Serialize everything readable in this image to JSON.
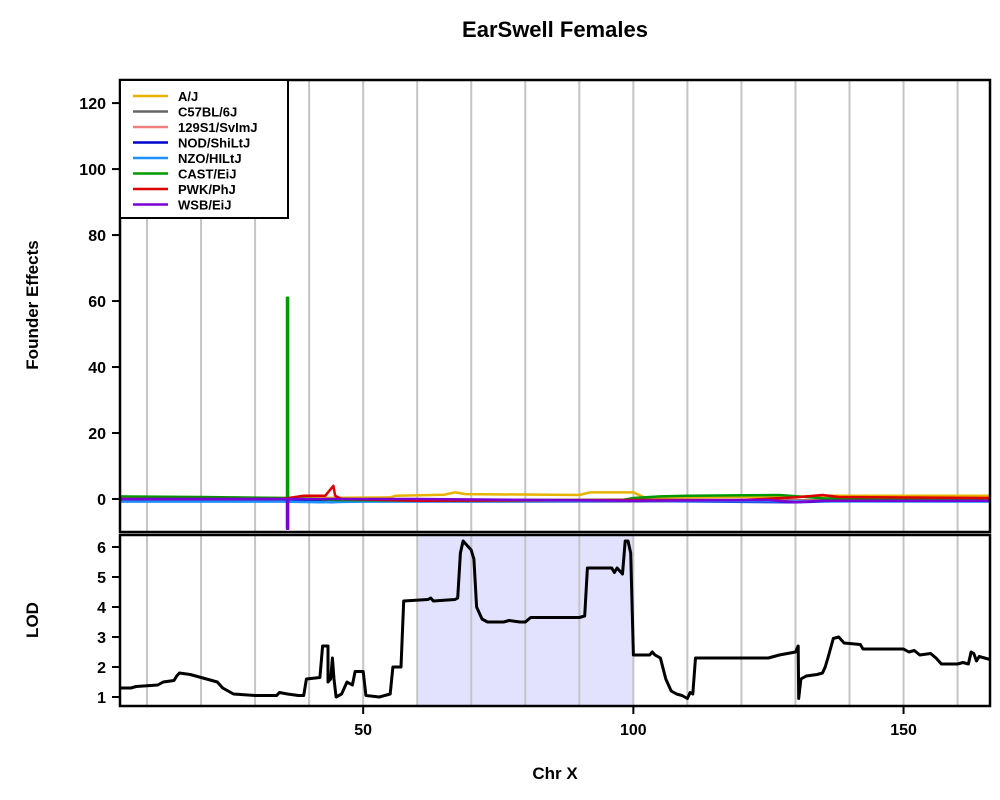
{
  "chart_data": {
    "type": "line",
    "title": "EarSwell Females",
    "xlabel": "Chr X",
    "xlim": [
      5,
      166
    ],
    "xticks": [
      50,
      100,
      150
    ],
    "grid_x": [
      10,
      20,
      30,
      40,
      50,
      60,
      70,
      80,
      90,
      100,
      110,
      120,
      130,
      140,
      150,
      160
    ],
    "top_panel": {
      "ylabel": "Founder Effects",
      "ylim": [
        -10,
        127
      ],
      "yticks": [
        0,
        20,
        40,
        60,
        80,
        100,
        120
      ],
      "legend_position": "top-left",
      "series": [
        {
          "name": "A/J",
          "color": "#E6B400",
          "points": [
            [
              5,
              0.3
            ],
            [
              40,
              0.3
            ],
            [
              55,
              0.5
            ],
            [
              56,
              1.0
            ],
            [
              65,
              1.3
            ],
            [
              67,
              2.0
            ],
            [
              69,
              1.5
            ],
            [
              90,
              1.2
            ],
            [
              92,
              2.0
            ],
            [
              100,
              2.0
            ],
            [
              102,
              0.5
            ],
            [
              110,
              0.6
            ],
            [
              130,
              0.7
            ],
            [
              135,
              1.0
            ],
            [
              166,
              1.0
            ]
          ]
        },
        {
          "name": "C57BL/6J",
          "color": "#666666",
          "points": [
            [
              5,
              -0.2
            ],
            [
              35,
              -0.2
            ],
            [
              45,
              -0.3
            ],
            [
              60,
              -0.3
            ],
            [
              100,
              -0.2
            ],
            [
              130,
              -0.4
            ],
            [
              166,
              -0.3
            ]
          ]
        },
        {
          "name": "129S1/SvImJ",
          "color": "#F08080",
          "points": [
            [
              5,
              -0.5
            ],
            [
              35,
              -0.5
            ],
            [
              50,
              -0.6
            ],
            [
              70,
              -0.8
            ],
            [
              100,
              -0.8
            ],
            [
              130,
              -0.5
            ],
            [
              166,
              -0.4
            ]
          ]
        },
        {
          "name": "NOD/ShiLtJ",
          "color": "#0000CC",
          "points": [
            [
              5,
              -0.3
            ],
            [
              35,
              -0.3
            ],
            [
              42,
              -0.5
            ],
            [
              44,
              -1.0
            ],
            [
              48,
              -0.5
            ],
            [
              60,
              -0.5
            ],
            [
              100,
              -0.6
            ],
            [
              130,
              -1.0
            ],
            [
              140,
              -0.5
            ],
            [
              166,
              -0.4
            ]
          ]
        },
        {
          "name": "NZO/HILtJ",
          "color": "#1E90FF",
          "points": [
            [
              5,
              -0.8
            ],
            [
              35,
              -0.8
            ],
            [
              42,
              -1.0
            ],
            [
              50,
              -0.8
            ],
            [
              100,
              -0.7
            ],
            [
              166,
              -0.8
            ]
          ]
        },
        {
          "name": "CAST/EiJ",
          "color": "#009900",
          "points": [
            [
              5,
              0.8
            ],
            [
              20,
              0.6
            ],
            [
              35.9,
              0.3
            ],
            [
              35.9,
              61
            ],
            [
              36.1,
              61
            ],
            [
              36.1,
              0.3
            ],
            [
              45,
              -0.3
            ],
            [
              60,
              -0.5
            ],
            [
              98,
              -0.3
            ],
            [
              100,
              0.3
            ],
            [
              105,
              0.8
            ],
            [
              110,
              1.0
            ],
            [
              127,
              1.2
            ],
            [
              135,
              0.2
            ],
            [
              166,
              -0.2
            ]
          ]
        },
        {
          "name": "PWK/PhJ",
          "color": "#DD0000",
          "points": [
            [
              5,
              0.0
            ],
            [
              35,
              0.0
            ],
            [
              39,
              1.0
            ],
            [
              43,
              1.0
            ],
            [
              44.5,
              4.0
            ],
            [
              44.8,
              1.0
            ],
            [
              46,
              0.0
            ],
            [
              60,
              -0.5
            ],
            [
              100,
              -0.3
            ],
            [
              120,
              -0.3
            ],
            [
              130,
              0.5
            ],
            [
              135,
              1.2
            ],
            [
              138,
              0.6
            ],
            [
              166,
              0.3
            ]
          ]
        },
        {
          "name": "WSB/EiJ",
          "color": "#7B00D4",
          "points": [
            [
              5,
              0.0
            ],
            [
              35,
              0.0
            ],
            [
              35.9,
              0.0
            ],
            [
              35.9,
              -9
            ],
            [
              36.1,
              -9
            ],
            [
              36.1,
              0.0
            ],
            [
              50,
              0.0
            ],
            [
              60,
              0.0
            ],
            [
              100,
              -0.5
            ],
            [
              125,
              -0.3
            ],
            [
              130,
              -1.0
            ],
            [
              135,
              -0.5
            ],
            [
              166,
              -0.5
            ]
          ]
        }
      ]
    },
    "bottom_panel": {
      "ylabel": "LOD",
      "ylim": [
        0.7,
        6.4
      ],
      "yticks": [
        1,
        2,
        3,
        4,
        5,
        6
      ],
      "highlight_interval": [
        60,
        100
      ],
      "highlight_color": "#E2E2FF",
      "series": [
        {
          "name": "LOD",
          "color": "#000000",
          "points": [
            [
              5,
              1.3
            ],
            [
              7,
              1.3
            ],
            [
              8,
              1.35
            ],
            [
              12,
              1.4
            ],
            [
              13,
              1.5
            ],
            [
              15,
              1.55
            ],
            [
              15.5,
              1.7
            ],
            [
              16,
              1.8
            ],
            [
              18,
              1.75
            ],
            [
              20,
              1.65
            ],
            [
              23,
              1.5
            ],
            [
              24,
              1.3
            ],
            [
              26,
              1.1
            ],
            [
              30,
              1.05
            ],
            [
              34,
              1.05
            ],
            [
              34.5,
              1.15
            ],
            [
              36,
              1.1
            ],
            [
              38,
              1.05
            ],
            [
              39,
              1.05
            ],
            [
              39.5,
              1.6
            ],
            [
              42,
              1.65
            ],
            [
              42.5,
              2.7
            ],
            [
              43.5,
              2.7
            ],
            [
              43.5,
              1.5
            ],
            [
              44,
              1.6
            ],
            [
              44.3,
              2.3
            ],
            [
              44.6,
              1.6
            ],
            [
              45,
              1.0
            ],
            [
              46,
              1.1
            ],
            [
              47,
              1.5
            ],
            [
              48,
              1.4
            ],
            [
              48.5,
              1.85
            ],
            [
              50,
              1.85
            ],
            [
              50.5,
              1.05
            ],
            [
              53,
              1.0
            ],
            [
              55,
              1.1
            ],
            [
              55.5,
              2.0
            ],
            [
              57,
              2.0
            ],
            [
              57.5,
              4.2
            ],
            [
              62,
              4.25
            ],
            [
              62.5,
              4.3
            ],
            [
              63,
              4.2
            ],
            [
              67,
              4.25
            ],
            [
              67.5,
              4.3
            ],
            [
              68,
              5.8
            ],
            [
              68.5,
              6.2
            ],
            [
              70,
              5.9
            ],
            [
              70.5,
              5.6
            ],
            [
              71,
              4.0
            ],
            [
              72,
              3.6
            ],
            [
              73,
              3.5
            ],
            [
              76,
              3.5
            ],
            [
              77,
              3.55
            ],
            [
              79,
              3.5
            ],
            [
              80,
              3.5
            ],
            [
              81,
              3.65
            ],
            [
              90,
              3.65
            ],
            [
              91,
              3.7
            ],
            [
              91.5,
              5.3
            ],
            [
              96,
              5.3
            ],
            [
              96.5,
              5.15
            ],
            [
              97,
              5.3
            ],
            [
              98,
              5.1
            ],
            [
              98.5,
              6.2
            ],
            [
              99,
              6.2
            ],
            [
              99.5,
              5.8
            ],
            [
              100,
              2.4
            ],
            [
              103,
              2.4
            ],
            [
              103.5,
              2.5
            ],
            [
              104,
              2.4
            ],
            [
              105,
              2.3
            ],
            [
              106,
              1.6
            ],
            [
              107,
              1.2
            ],
            [
              108,
              1.1
            ],
            [
              109,
              1.05
            ],
            [
              110,
              0.95
            ],
            [
              110.5,
              1.15
            ],
            [
              111,
              1.1
            ],
            [
              111.5,
              2.3
            ],
            [
              120,
              2.3
            ],
            [
              125,
              2.3
            ],
            [
              127,
              2.4
            ],
            [
              130,
              2.5
            ],
            [
              130.5,
              2.7
            ],
            [
              130.6,
              0.95
            ],
            [
              131,
              1.6
            ],
            [
              132,
              1.7
            ],
            [
              134,
              1.75
            ],
            [
              135,
              1.8
            ],
            [
              135.5,
              2.0
            ],
            [
              136,
              2.3
            ],
            [
              137,
              2.95
            ],
            [
              138,
              3.0
            ],
            [
              139,
              2.8
            ],
            [
              142,
              2.75
            ],
            [
              142.5,
              2.6
            ],
            [
              150,
              2.6
            ],
            [
              151,
              2.5
            ],
            [
              152,
              2.55
            ],
            [
              153,
              2.4
            ],
            [
              155,
              2.45
            ],
            [
              156,
              2.3
            ],
            [
              157,
              2.1
            ],
            [
              160,
              2.1
            ],
            [
              161,
              2.15
            ],
            [
              162,
              2.1
            ],
            [
              162.5,
              2.5
            ],
            [
              163,
              2.45
            ],
            [
              163.5,
              2.2
            ],
            [
              164,
              2.35
            ],
            [
              165,
              2.3
            ],
            [
              166,
              2.25
            ]
          ]
        }
      ]
    }
  }
}
